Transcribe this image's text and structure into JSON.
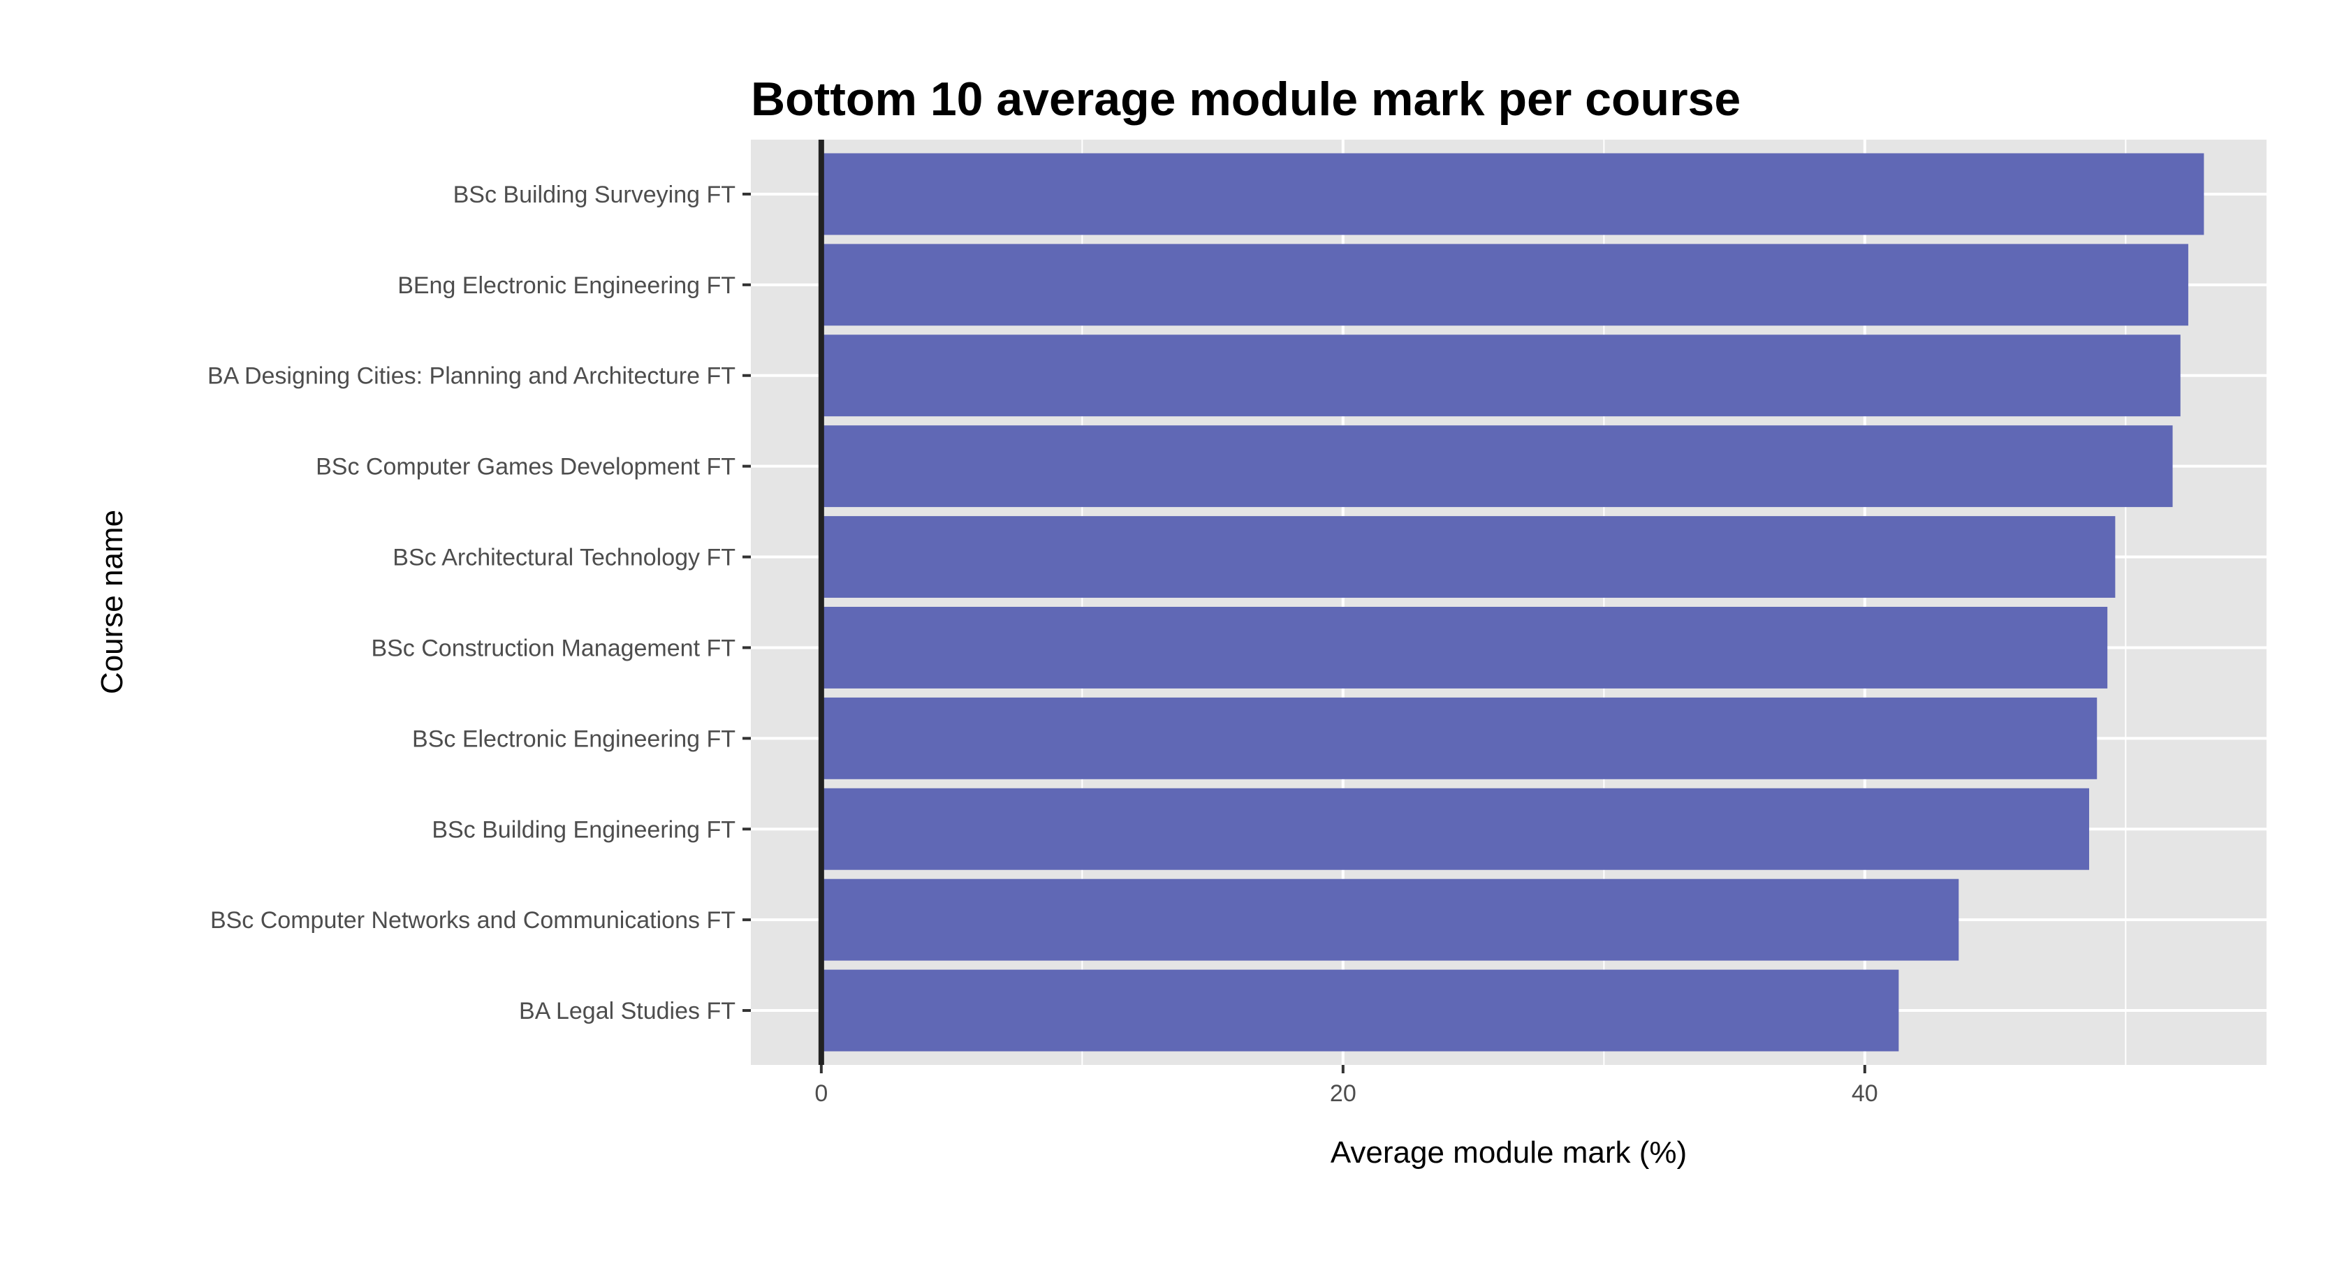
{
  "chart_data": {
    "type": "bar",
    "orientation": "horizontal",
    "title": "Bottom 10 average module mark per course",
    "xlabel": "Average module mark (%)",
    "ylabel": "Course name",
    "categories": [
      "BSc Building Surveying FT",
      "BEng Electronic Engineering FT",
      "BA Designing Cities: Planning and Architecture FT",
      "BSc Computer Games Development FT",
      "BSc Architectural Technology FT",
      "BSc Construction Management FT",
      "BSc Electronic Engineering FT",
      "BSc Building Engineering FT",
      "BSc Computer Networks and Communications FT",
      "BA Legal Studies FT"
    ],
    "values": [
      53.0,
      52.4,
      52.1,
      51.8,
      49.6,
      49.3,
      48.9,
      48.6,
      43.6,
      41.3
    ],
    "xlim": [
      -2.7,
      55.4
    ],
    "x_ticks": [
      0,
      20,
      40
    ],
    "x_tick_labels": [
      "0",
      "20",
      "40"
    ],
    "grid": true,
    "colors": {
      "bar": "#6068B5",
      "panel": "#E5E5E5",
      "grid": "#FFFFFF",
      "zero_line": "#222222"
    }
  }
}
